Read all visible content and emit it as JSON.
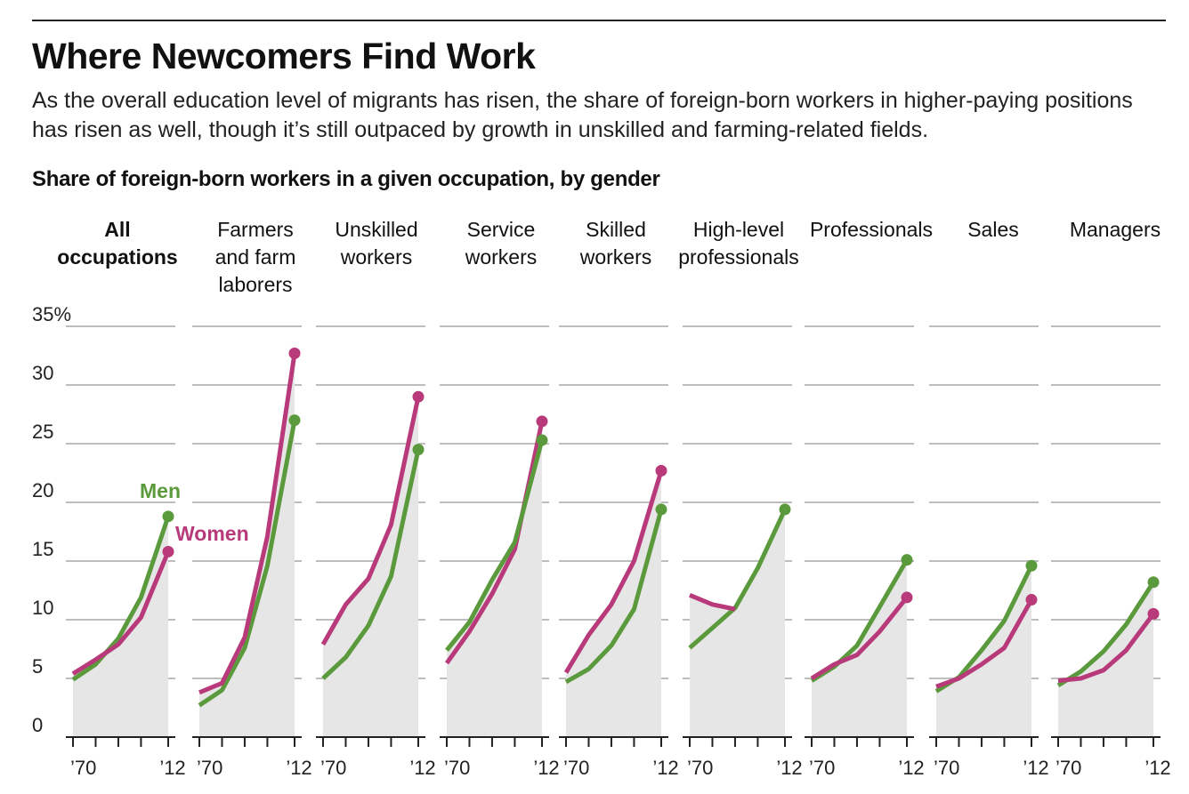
{
  "header": {
    "title": "Where Newcomers Find Work",
    "subtitle": "As the overall education level of migrants has risen, the share of foreign-born workers in higher-paying positions has risen as well, though it’s still outpaced by growth in unskilled and farming-related fields.",
    "chart_heading": "Share of foreign-born workers in a given occupation, by gender"
  },
  "colors": {
    "men": "#5b9a3c",
    "women": "#b83a7a",
    "fill": "#e6e6e6",
    "grid": "#bdbdbd",
    "axis": "#222222",
    "text": "#222222"
  },
  "chart_data": {
    "type": "line",
    "title": "Share of foreign-born workers in a given occupation, by gender",
    "y_unit": "%",
    "ylim": [
      0,
      35
    ],
    "y_ticks": [
      0,
      5,
      10,
      15,
      20,
      25,
      30,
      35
    ],
    "y_tick_labels": [
      "0",
      "5",
      "10",
      "15",
      "20",
      "25",
      "30",
      "35%"
    ],
    "x": [
      1970,
      1980,
      1990,
      2000,
      2012
    ],
    "x_tick_labels": [
      "’70",
      "’12"
    ],
    "grid": true,
    "legend": {
      "men": "Men",
      "women": "Women"
    },
    "panels": [
      {
        "label": "All occupations",
        "bold": true,
        "men": [
          4.9,
          6.2,
          8.4,
          11.9,
          18.8
        ],
        "women": [
          5.4,
          6.6,
          7.9,
          10.2,
          15.8
        ]
      },
      {
        "label": "Farmers and farm laborers",
        "men": [
          2.7,
          4.0,
          7.6,
          14.6,
          27.0
        ],
        "women": [
          3.8,
          4.6,
          8.5,
          17.1,
          32.7
        ]
      },
      {
        "label": "Unskilled workers",
        "men": [
          5.0,
          6.8,
          9.5,
          13.7,
          24.5
        ],
        "women": [
          7.9,
          11.3,
          13.5,
          18.1,
          29.0
        ]
      },
      {
        "label": "Service workers",
        "men": [
          7.4,
          9.8,
          13.4,
          16.6,
          25.3
        ],
        "women": [
          6.3,
          9.0,
          12.2,
          16.0,
          26.9
        ]
      },
      {
        "label": "Skilled workers",
        "men": [
          4.7,
          5.8,
          7.8,
          10.9,
          19.4
        ],
        "women": [
          5.5,
          8.7,
          11.3,
          15.0,
          22.7
        ]
      },
      {
        "label": "High-level professionals",
        "men": [
          7.6,
          9.3,
          11.0,
          14.4,
          19.4
        ],
        "women": [
          12.1,
          11.3,
          10.9,
          null,
          null
        ]
      },
      {
        "label": "Professionals",
        "men": [
          4.8,
          6.0,
          7.8,
          11.1,
          15.1
        ],
        "women": [
          5.0,
          6.2,
          7.0,
          9.0,
          11.9
        ]
      },
      {
        "label": "Sales",
        "men": [
          3.9,
          5.1,
          7.4,
          9.9,
          14.6
        ],
        "women": [
          4.3,
          5.0,
          6.2,
          7.6,
          11.7
        ]
      },
      {
        "label": "Managers",
        "men": [
          4.4,
          5.6,
          7.3,
          9.6,
          13.2
        ],
        "women": [
          4.8,
          5.0,
          5.7,
          7.4,
          10.5
        ]
      }
    ]
  }
}
